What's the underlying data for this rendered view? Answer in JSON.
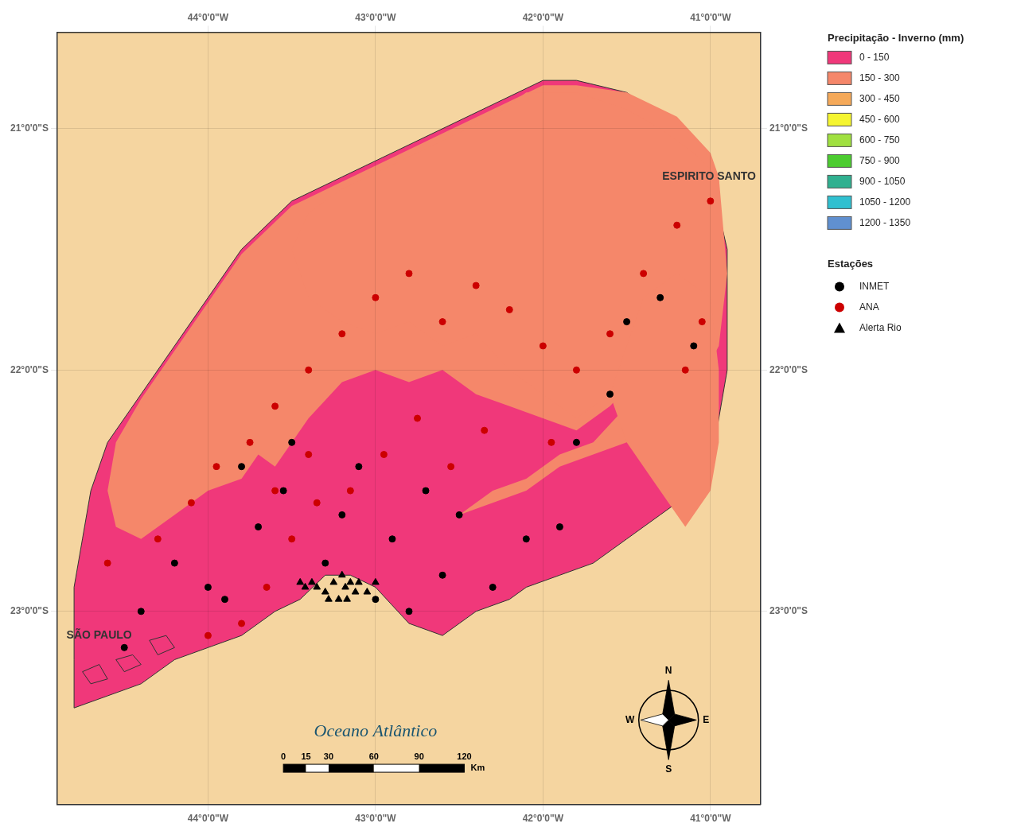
{
  "chart_data": {
    "type": "scatter",
    "xlim": [
      -44.9,
      -40.7
    ],
    "ylim": [
      -23.8,
      -20.6
    ],
    "xticks": [
      {
        "value": -44,
        "label": "44°0'0\"W"
      },
      {
        "value": -43,
        "label": "43°0'0\"W"
      },
      {
        "value": -42,
        "label": "42°0'0\"W"
      },
      {
        "value": -41,
        "label": "41°0'0\"W"
      }
    ],
    "yticks": [
      {
        "value": -23,
        "label": "23°0'0\"S"
      },
      {
        "value": -22,
        "label": "22°0'0\"S"
      },
      {
        "value": -21,
        "label": "21°0'0\"S"
      }
    ],
    "grid": true,
    "regions": [
      {
        "color": "#f5d5a0",
        "line_style": "none",
        "points": [
          [
            -44.9,
            -23.8
          ],
          [
            -40.7,
            -23.8
          ],
          [
            -40.7,
            -20.6
          ],
          [
            -44.9,
            -20.6
          ]
        ]
      },
      {
        "color": "#f0387a",
        "line_style": "solid",
        "points": [
          [
            -44.8,
            -23.4
          ],
          [
            -44.6,
            -23.35
          ],
          [
            -44.4,
            -23.3
          ],
          [
            -44.2,
            -23.2
          ],
          [
            -44.0,
            -23.15
          ],
          [
            -43.8,
            -23.1
          ],
          [
            -43.6,
            -23.0
          ],
          [
            -43.45,
            -22.95
          ],
          [
            -43.3,
            -22.85
          ],
          [
            -43.15,
            -22.85
          ],
          [
            -43.0,
            -22.9
          ],
          [
            -42.8,
            -23.05
          ],
          [
            -42.6,
            -23.1
          ],
          [
            -42.5,
            -23.05
          ],
          [
            -42.4,
            -23.0
          ],
          [
            -42.2,
            -22.95
          ],
          [
            -42.1,
            -22.9
          ],
          [
            -41.9,
            -22.85
          ],
          [
            -41.7,
            -22.8
          ],
          [
            -41.5,
            -22.7
          ],
          [
            -41.3,
            -22.6
          ],
          [
            -41.1,
            -22.5
          ],
          [
            -41.0,
            -22.4
          ],
          [
            -40.95,
            -22.2
          ],
          [
            -40.9,
            -22.0
          ],
          [
            -40.9,
            -21.5
          ],
          [
            -41.0,
            -21.2
          ],
          [
            -41.2,
            -21.0
          ],
          [
            -41.5,
            -20.85
          ],
          [
            -41.8,
            -20.8
          ],
          [
            -42.0,
            -20.8
          ],
          [
            -42.3,
            -20.9
          ],
          [
            -42.6,
            -21.0
          ],
          [
            -42.9,
            -21.1
          ],
          [
            -43.2,
            -21.2
          ],
          [
            -43.5,
            -21.3
          ],
          [
            -43.8,
            -21.5
          ],
          [
            -44.0,
            -21.7
          ],
          [
            -44.2,
            -21.9
          ],
          [
            -44.4,
            -22.1
          ],
          [
            -44.6,
            -22.3
          ],
          [
            -44.7,
            -22.5
          ],
          [
            -44.75,
            -22.7
          ],
          [
            -44.8,
            -22.9
          ],
          [
            -44.8,
            -23.2
          ],
          [
            -44.8,
            -23.4
          ]
        ]
      },
      {
        "color": "#f0387a",
        "line_style": "solid",
        "points": [
          [
            -44.7,
            -23.3
          ],
          [
            -44.75,
            -23.25
          ],
          [
            -44.65,
            -23.22
          ],
          [
            -44.6,
            -23.28
          ]
        ]
      },
      {
        "color": "#f0387a",
        "line_style": "solid",
        "points": [
          [
            -44.5,
            -23.25
          ],
          [
            -44.55,
            -23.2
          ],
          [
            -44.45,
            -23.18
          ],
          [
            -44.4,
            -23.22
          ]
        ]
      },
      {
        "color": "#f0387a",
        "line_style": "solid",
        "points": [
          [
            -44.3,
            -23.18
          ],
          [
            -44.35,
            -23.12
          ],
          [
            -44.25,
            -23.1
          ],
          [
            -44.2,
            -23.15
          ]
        ]
      },
      {
        "color": "#f5876a",
        "line_style": "none",
        "points": [
          [
            -43.6,
            -22.4
          ],
          [
            -43.4,
            -22.2
          ],
          [
            -43.2,
            -22.05
          ],
          [
            -43.0,
            -22.0
          ],
          [
            -42.8,
            -22.05
          ],
          [
            -42.6,
            -22.0
          ],
          [
            -42.4,
            -22.1
          ],
          [
            -42.2,
            -22.15
          ],
          [
            -42.0,
            -22.2
          ],
          [
            -41.8,
            -22.25
          ],
          [
            -41.6,
            -22.15
          ],
          [
            -41.4,
            -22.0
          ],
          [
            -41.2,
            -21.85
          ],
          [
            -41.0,
            -21.7
          ],
          [
            -40.95,
            -21.5
          ],
          [
            -40.95,
            -21.2
          ],
          [
            -41.0,
            -21.1
          ],
          [
            -41.2,
            -20.95
          ],
          [
            -41.5,
            -20.85
          ],
          [
            -41.8,
            -20.82
          ],
          [
            -42.0,
            -20.82
          ],
          [
            -42.3,
            -20.92
          ],
          [
            -42.6,
            -21.02
          ],
          [
            -42.9,
            -21.12
          ],
          [
            -43.2,
            -21.22
          ],
          [
            -43.5,
            -21.32
          ],
          [
            -43.8,
            -21.52
          ],
          [
            -44.0,
            -21.72
          ],
          [
            -44.2,
            -21.92
          ],
          [
            -44.4,
            -22.12
          ],
          [
            -44.55,
            -22.3
          ],
          [
            -44.6,
            -22.5
          ],
          [
            -44.55,
            -22.65
          ],
          [
            -44.4,
            -22.7
          ],
          [
            -44.2,
            -22.6
          ],
          [
            -44.0,
            -22.5
          ],
          [
            -43.8,
            -22.45
          ],
          [
            -43.7,
            -22.35
          ],
          [
            -43.6,
            -22.4
          ]
        ]
      },
      {
        "color": "#f5876a",
        "line_style": "none",
        "points": [
          [
            -42.5,
            -22.6
          ],
          [
            -42.3,
            -22.55
          ],
          [
            -42.1,
            -22.5
          ],
          [
            -41.9,
            -22.4
          ],
          [
            -41.7,
            -22.35
          ],
          [
            -41.5,
            -22.3
          ],
          [
            -41.3,
            -22.2
          ],
          [
            -41.1,
            -22.1
          ],
          [
            -40.95,
            -21.9
          ],
          [
            -40.9,
            -21.6
          ],
          [
            -40.95,
            -21.2
          ],
          [
            -41.1,
            -21.1
          ],
          [
            -41.3,
            -21.0
          ],
          [
            -41.5,
            -20.92
          ],
          [
            -41.8,
            -20.85
          ],
          [
            -42.1,
            -20.85
          ],
          [
            -42.3,
            -20.95
          ],
          [
            -42.6,
            -21.05
          ],
          [
            -42.9,
            -21.15
          ],
          [
            -43.2,
            -21.25
          ],
          [
            -43.4,
            -21.35
          ],
          [
            -43.5,
            -21.5
          ],
          [
            -43.4,
            -21.7
          ],
          [
            -43.2,
            -21.8
          ],
          [
            -43.0,
            -21.85
          ],
          [
            -42.8,
            -21.8
          ],
          [
            -42.6,
            -21.9
          ],
          [
            -42.4,
            -21.85
          ],
          [
            -42.2,
            -22.0
          ],
          [
            -42.0,
            -22.1
          ],
          [
            -41.8,
            -22.2
          ],
          [
            -41.6,
            -22.1
          ],
          [
            -41.5,
            -22.15
          ],
          [
            -41.7,
            -22.3
          ],
          [
            -41.9,
            -22.35
          ],
          [
            -42.1,
            -22.45
          ],
          [
            -42.3,
            -22.5
          ],
          [
            -42.5,
            -22.6
          ]
        ]
      },
      {
        "color": "#f5876a",
        "line_style": "none",
        "points": [
          [
            -41.15,
            -22.65
          ],
          [
            -41.0,
            -22.5
          ],
          [
            -40.95,
            -22.3
          ],
          [
            -40.95,
            -22.0
          ],
          [
            -41.0,
            -21.7
          ],
          [
            -41.2,
            -21.6
          ],
          [
            -41.4,
            -21.7
          ],
          [
            -41.5,
            -21.9
          ],
          [
            -41.6,
            -22.1
          ],
          [
            -41.5,
            -22.3
          ],
          [
            -41.35,
            -22.45
          ],
          [
            -41.2,
            -22.6
          ],
          [
            -41.15,
            -22.65
          ]
        ]
      }
    ],
    "classes_title": "Precipitação - Inverno (mm)",
    "classes": [
      {
        "name": "0 - 150",
        "color": "#f0387a"
      },
      {
        "name": "150 - 300",
        "color": "#f5876a"
      },
      {
        "name": "300 - 450",
        "color": "#f5a95a"
      },
      {
        "name": "450 - 600",
        "color": "#f5f530"
      },
      {
        "name": "600 - 750",
        "color": "#a0e040"
      },
      {
        "name": "750 - 900",
        "color": "#4ccc30"
      },
      {
        "name": "900 - 1050",
        "color": "#30b090"
      },
      {
        "name": "1050 - 1200",
        "color": "#30c0d0"
      },
      {
        "name": "1200 - 1350",
        "color": "#6090d0"
      }
    ],
    "series_title": "Estações",
    "series": [
      {
        "name": "INMET",
        "color": "#000000",
        "marker": "circle",
        "values": [
          [
            -44.0,
            -22.9
          ],
          [
            -43.7,
            -22.65
          ],
          [
            -43.55,
            -22.5
          ],
          [
            -43.3,
            -22.8
          ],
          [
            -43.2,
            -22.6
          ],
          [
            -43.1,
            -22.4
          ],
          [
            -42.9,
            -22.7
          ],
          [
            -42.7,
            -22.5
          ],
          [
            -42.6,
            -22.85
          ],
          [
            -42.5,
            -22.6
          ],
          [
            -42.3,
            -22.9
          ],
          [
            -42.1,
            -22.7
          ],
          [
            -41.9,
            -22.65
          ],
          [
            -41.8,
            -22.3
          ],
          [
            -41.6,
            -22.1
          ],
          [
            -41.5,
            -21.8
          ],
          [
            -41.3,
            -21.7
          ],
          [
            -41.1,
            -21.9
          ],
          [
            -43.5,
            -22.3
          ],
          [
            -43.8,
            -22.4
          ],
          [
            -44.2,
            -22.8
          ],
          [
            -44.4,
            -23.0
          ],
          [
            -44.5,
            -23.15
          ],
          [
            -43.9,
            -22.95
          ],
          [
            -43.0,
            -22.95
          ],
          [
            -42.8,
            -23.0
          ]
        ]
      },
      {
        "name": "ANA",
        "color": "#cc0000",
        "marker": "circle",
        "values": [
          [
            -44.6,
            -22.8
          ],
          [
            -44.3,
            -22.7
          ],
          [
            -44.1,
            -22.55
          ],
          [
            -43.95,
            -22.4
          ],
          [
            -43.75,
            -22.3
          ],
          [
            -43.6,
            -22.15
          ],
          [
            -43.4,
            -22.0
          ],
          [
            -43.2,
            -21.85
          ],
          [
            -43.0,
            -21.7
          ],
          [
            -42.8,
            -21.6
          ],
          [
            -42.6,
            -21.8
          ],
          [
            -42.4,
            -21.65
          ],
          [
            -42.2,
            -21.75
          ],
          [
            -42.0,
            -21.9
          ],
          [
            -41.8,
            -22.0
          ],
          [
            -41.6,
            -21.85
          ],
          [
            -41.4,
            -21.6
          ],
          [
            -41.2,
            -21.4
          ],
          [
            -41.0,
            -21.3
          ],
          [
            -43.6,
            -22.5
          ],
          [
            -43.4,
            -22.35
          ],
          [
            -43.15,
            -22.5
          ],
          [
            -42.95,
            -22.35
          ],
          [
            -42.75,
            -22.2
          ],
          [
            -42.55,
            -22.4
          ],
          [
            -42.35,
            -22.25
          ],
          [
            -41.95,
            -22.3
          ],
          [
            -41.15,
            -22.0
          ],
          [
            -41.05,
            -21.8
          ],
          [
            -44.0,
            -23.1
          ],
          [
            -43.8,
            -23.05
          ],
          [
            -43.65,
            -22.9
          ],
          [
            -43.5,
            -22.7
          ],
          [
            -43.35,
            -22.55
          ]
        ]
      },
      {
        "name": "Alerta Rio",
        "color": "#000000",
        "marker": "triangle",
        "values": [
          [
            -43.35,
            -22.9
          ],
          [
            -43.3,
            -22.92
          ],
          [
            -43.25,
            -22.88
          ],
          [
            -43.2,
            -22.85
          ],
          [
            -43.18,
            -22.9
          ],
          [
            -43.15,
            -22.88
          ],
          [
            -43.12,
            -22.92
          ],
          [
            -43.1,
            -22.88
          ],
          [
            -43.28,
            -22.95
          ],
          [
            -43.22,
            -22.95
          ],
          [
            -43.17,
            -22.95
          ],
          [
            -43.38,
            -22.88
          ],
          [
            -43.42,
            -22.9
          ],
          [
            -43.45,
            -22.88
          ],
          [
            -43.0,
            -22.88
          ],
          [
            -43.05,
            -22.92
          ]
        ]
      }
    ],
    "annotations": [
      {
        "text": "Oceano Atlântico",
        "x": -43.0,
        "y": -23.5,
        "color": "#1a5570"
      },
      {
        "text": "ESPIRITO SANTO",
        "x": -40.92,
        "y": -21.2,
        "color": "#333333"
      },
      {
        "text": "SÃO PAULO",
        "x": -44.65,
        "y": -23.1,
        "color": "#333333"
      }
    ],
    "scale_bar": {
      "x": -43.55,
      "y": -23.65,
      "length": 1.08,
      "ticks": [
        0,
        15,
        30,
        60,
        90,
        120
      ],
      "unit": "Km"
    },
    "compass": {
      "x": -41.25,
      "y": -23.45,
      "labels": [
        "N",
        "E",
        "S",
        "W"
      ]
    }
  }
}
